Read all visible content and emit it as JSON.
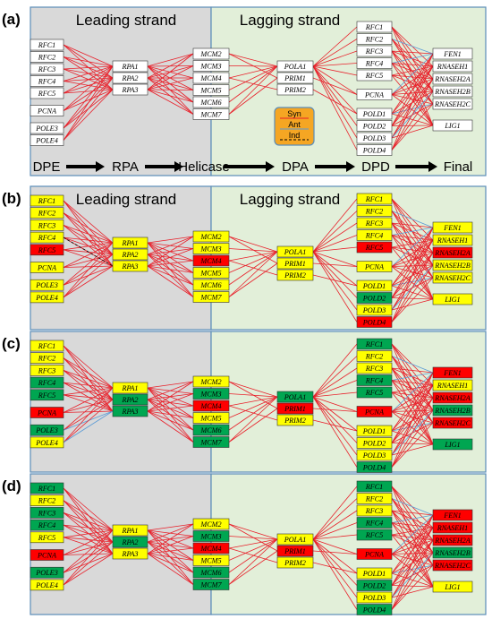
{
  "colors": {
    "leading_bg": "#d9d9d9",
    "lagging_bg": "#e2efd9",
    "border": "#5b8db8",
    "edge_red": "#e8202a",
    "edge_blue": "#5b9bd5",
    "yellow": "#ffff00",
    "red": "#ff0000",
    "green": "#00a651",
    "white": "#ffffff",
    "legend_bg": "#f5a623"
  },
  "region_titles": {
    "leading": "Leading strand",
    "lagging": "Lagging strand"
  },
  "stages": [
    "DPE",
    "RPA",
    "Helicase",
    "DPA",
    "DPD",
    "Final"
  ],
  "legend": [
    "Syn",
    "Ant",
    "Ind"
  ],
  "groups": {
    "dpe": [
      "RFC1",
      "RFC2",
      "RFC3",
      "RFC4",
      "RFC5",
      "PCNA",
      "POLE3",
      "POLE4"
    ],
    "rpa": [
      "RPA1",
      "RPA2",
      "RPA3"
    ],
    "mcm": [
      "MCM2",
      "MCM3",
      "MCM4",
      "MCM5",
      "MCM6",
      "MCM7"
    ],
    "dpa": [
      "POLA1",
      "PRIM1",
      "PRIM2"
    ],
    "dpd": [
      "RFC1",
      "RFC2",
      "RFC3",
      "RFC4",
      "RFC5",
      "PCNA",
      "POLD1",
      "POLD2",
      "POLD3",
      "POLD4"
    ],
    "fin": [
      "FEN1",
      "RNASEH1",
      "RNASEH2A",
      "RNASEH2B",
      "RNASEH2C",
      "LIG1"
    ]
  },
  "panels": [
    {
      "label": "(a)",
      "colors": {
        "dpe": [
          "w",
          "w",
          "w",
          "w",
          "w",
          "w",
          "w",
          "w"
        ],
        "rpa": [
          "w",
          "w",
          "w"
        ],
        "mcm": [
          "w",
          "w",
          "w",
          "w",
          "w",
          "w"
        ],
        "dpa": [
          "w",
          "w",
          "w"
        ],
        "dpd": [
          "w",
          "w",
          "w",
          "w",
          "w",
          "w",
          "w",
          "w",
          "w",
          "w"
        ],
        "fin": [
          "w",
          "w",
          "w",
          "w",
          "w",
          "w"
        ]
      }
    },
    {
      "label": "(b)",
      "colors": {
        "dpe": [
          "y",
          "y",
          "y",
          "y",
          "r",
          "y",
          "y",
          "y"
        ],
        "rpa": [
          "y",
          "y",
          "y"
        ],
        "mcm": [
          "y",
          "y",
          "r",
          "y",
          "y",
          "y"
        ],
        "dpa": [
          "y",
          "y",
          "y"
        ],
        "dpd": [
          "y",
          "y",
          "y",
          "y",
          "r",
          "y",
          "y",
          "g",
          "y",
          "r"
        ],
        "fin": [
          "y",
          "y",
          "r",
          "y",
          "y",
          "y"
        ]
      }
    },
    {
      "label": "(c)",
      "colors": {
        "dpe": [
          "y",
          "y",
          "y",
          "g",
          "g",
          "r",
          "g",
          "y"
        ],
        "rpa": [
          "y",
          "g",
          "g"
        ],
        "mcm": [
          "y",
          "g",
          "r",
          "y",
          "g",
          "g"
        ],
        "dpa": [
          "g",
          "r",
          "y"
        ],
        "dpd": [
          "g",
          "y",
          "y",
          "g",
          "g",
          "r",
          "y",
          "y",
          "y",
          "g"
        ],
        "fin": [
          "r",
          "y",
          "r",
          "g",
          "r",
          "g"
        ]
      }
    },
    {
      "label": "(d)",
      "colors": {
        "dpe": [
          "g",
          "y",
          "g",
          "g",
          "y",
          "r",
          "g",
          "y"
        ],
        "rpa": [
          "y",
          "g",
          "y"
        ],
        "mcm": [
          "y",
          "g",
          "r",
          "y",
          "g",
          "g"
        ],
        "dpa": [
          "y",
          "r",
          "y"
        ],
        "dpd": [
          "g",
          "y",
          "y",
          "g",
          "g",
          "r",
          "y",
          "g",
          "y",
          "g"
        ],
        "fin": [
          "r",
          "r",
          "r",
          "g",
          "r",
          "y"
        ]
      }
    }
  ]
}
